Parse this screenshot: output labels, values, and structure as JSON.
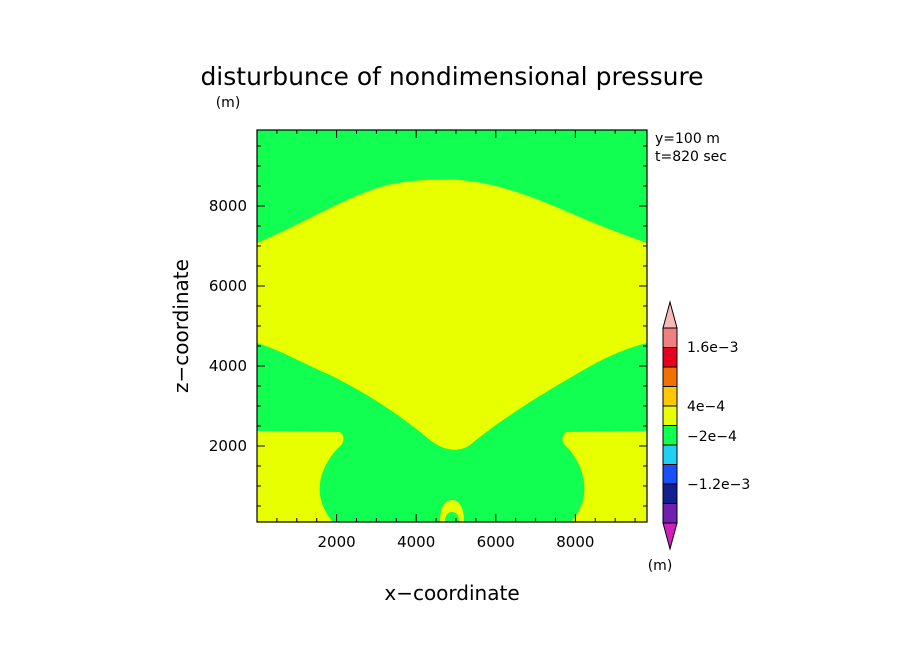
{
  "chart_data": {
    "type": "heatmap",
    "title": "disturbunce of nondimensional pressure",
    "unit_top": "(m)",
    "xlabel": "x−coordinate",
    "ylabel": "z−coordinate",
    "xlim": [
      0,
      9800
    ],
    "ylim": [
      100,
      9900
    ],
    "x_ticks": [
      "2000",
      "4000",
      "6000",
      "8000"
    ],
    "y_ticks": [
      "2000",
      "4000",
      "6000",
      "8000"
    ],
    "annotations": [
      "y=100  m",
      "t=820  sec"
    ],
    "colorbar": {
      "unit": "(m)",
      "labels": [
        "1.6e−3",
        "4e−4",
        "−2e−4",
        "−1.2e−3"
      ],
      "colors": [
        "#d020c0",
        "#7020b0",
        "#102090",
        "#1850ff",
        "#20d0f0",
        "#10ff50",
        "#e8ff00",
        "#ffc800",
        "#f07000",
        "#e80020",
        "#f08080",
        "#f8b8b8"
      ]
    },
    "region_colors": {
      "background": "#10ff50",
      "upper_dome": "#e8ff00",
      "lower_left": "#e8ff00",
      "lower_right": "#e8ff00",
      "center_small": "#e8ff00"
    }
  }
}
